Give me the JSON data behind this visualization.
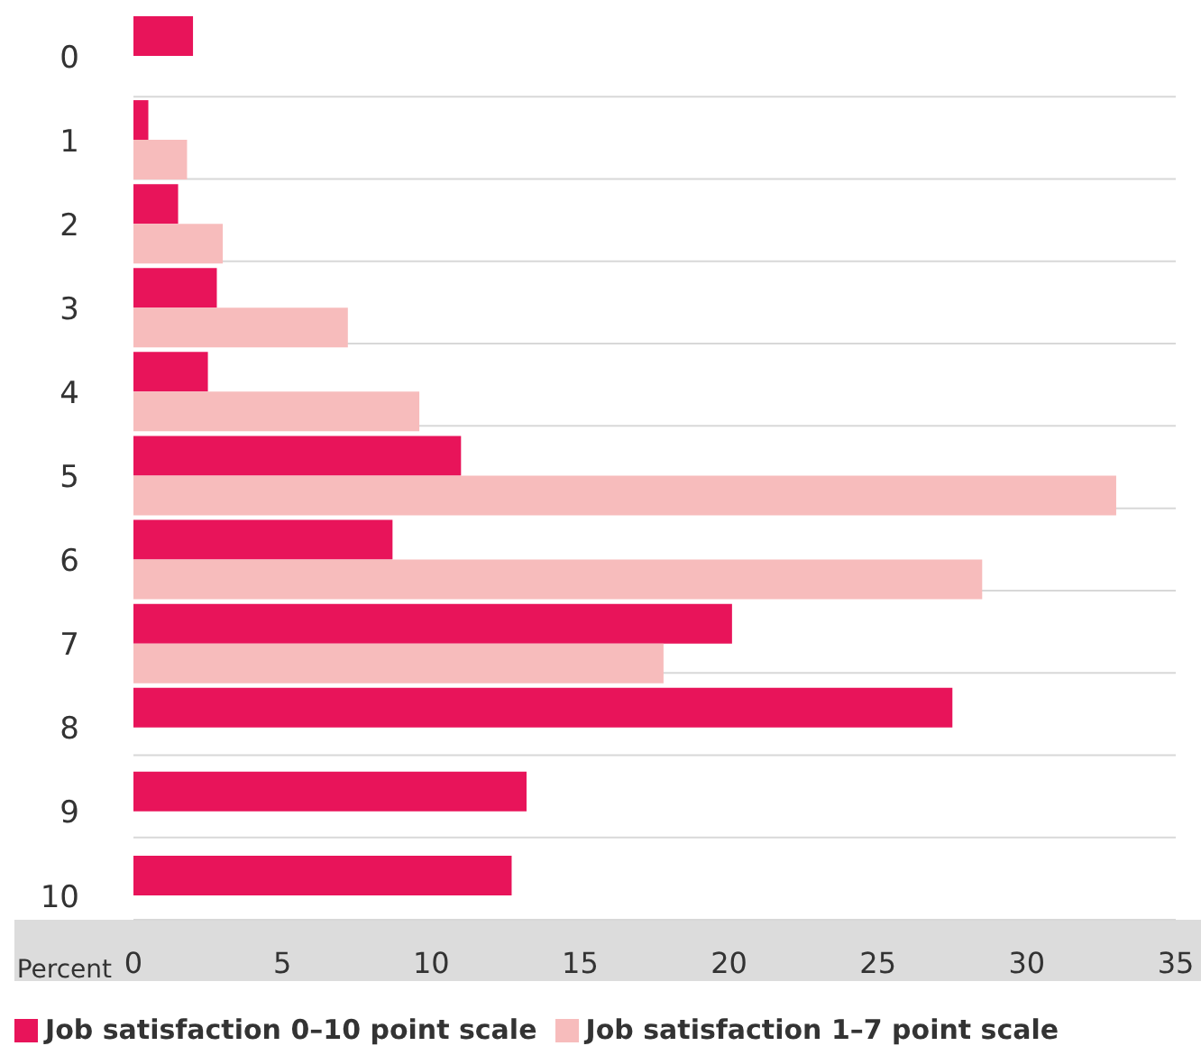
{
  "chart_data": {
    "type": "bar",
    "orientation": "horizontal",
    "xlabel": "Percent",
    "categories": [
      "0",
      "1",
      "2",
      "3",
      "4",
      "5",
      "6",
      "7",
      "8",
      "9",
      "10"
    ],
    "series": [
      {
        "name": "Job satisfaction 0–10 point scale",
        "color": "#e8145a",
        "values": [
          2.0,
          0.5,
          1.5,
          2.8,
          2.5,
          11.0,
          8.7,
          20.1,
          27.5,
          13.2,
          12.7
        ]
      },
      {
        "name": "Job satisfaction 1–7 point scale",
        "color": "#f7bcbc",
        "values": [
          null,
          1.8,
          3.0,
          7.2,
          9.6,
          33.0,
          28.5,
          17.8,
          null,
          null,
          null
        ]
      }
    ],
    "xlim": [
      0,
      35
    ],
    "xticks": [
      0,
      5,
      10,
      15,
      20,
      25,
      30,
      35
    ],
    "grid": "y",
    "legend": "bottom left"
  }
}
